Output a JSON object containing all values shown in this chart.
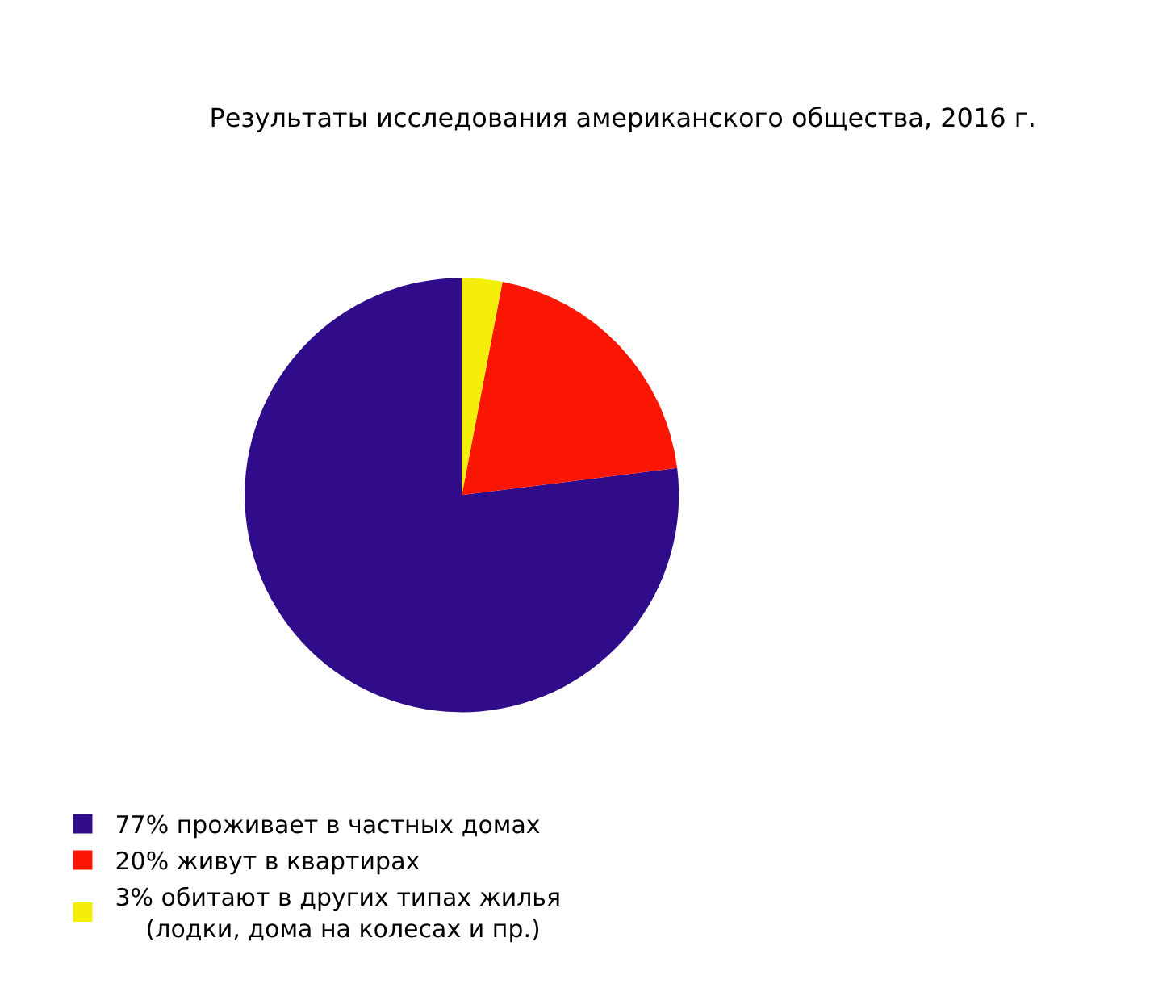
{
  "chart_data": {
    "type": "pie",
    "title": "Результаты исследования американского общества, 2016 г.",
    "categories": [
      "77% проживает в частных домах",
      "20% живут в квартирах",
      "3% обитают в других типах жилья\n(лодки, дома на колесах и пр.)"
    ],
    "values": [
      77,
      20,
      3
    ],
    "colors": [
      "#310c8a",
      "#fb1603",
      "#f5ee0a"
    ],
    "legend": "bottom left"
  }
}
